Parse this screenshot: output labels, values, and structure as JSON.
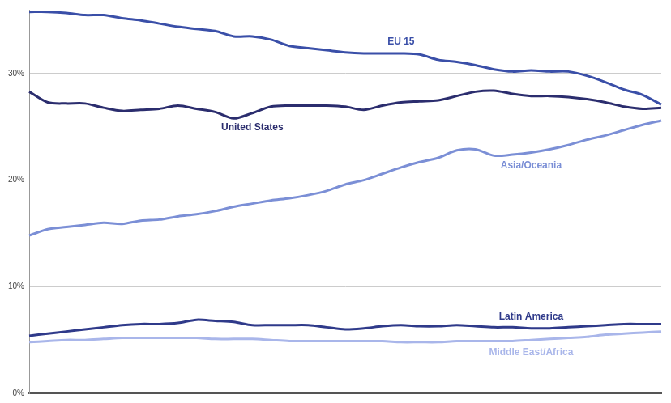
{
  "chart_data": {
    "type": "line",
    "categories": [
      null,
      null,
      null,
      null,
      null,
      null,
      null,
      null,
      null,
      null,
      null,
      null,
      null,
      null,
      null,
      null,
      null,
      null,
      null,
      null,
      null,
      null,
      null,
      null,
      null,
      null,
      null,
      null,
      null,
      null,
      null,
      null,
      null,
      null,
      null
    ],
    "series": [
      {
        "name": "EU 15",
        "color": "#3a4fa8",
        "values": [
          35.8,
          35.8,
          35.7,
          35.5,
          35.5,
          35.2,
          35.0,
          34.7,
          34.4,
          34.2,
          34.0,
          33.5,
          33.5,
          33.2,
          32.6,
          32.4,
          32.2,
          32.0,
          31.9,
          31.9,
          31.9,
          31.8,
          31.3,
          31.1,
          30.8,
          30.4,
          30.2,
          30.3,
          30.2,
          30.2,
          29.8,
          29.2,
          28.5,
          28.0,
          27.1
        ]
      },
      {
        "name": "United States",
        "color": "#2b2d6e",
        "values": [
          28.3,
          27.3,
          27.2,
          27.2,
          26.8,
          26.5,
          26.6,
          26.7,
          27.0,
          26.7,
          26.4,
          25.8,
          26.3,
          26.9,
          27.0,
          27.0,
          27.0,
          26.9,
          26.6,
          27.0,
          27.3,
          27.4,
          27.5,
          27.9,
          28.3,
          28.4,
          28.1,
          27.9,
          27.9,
          27.8,
          27.6,
          27.3,
          26.9,
          26.7,
          26.8
        ]
      },
      {
        "name": "Asia/Oceania",
        "color": "#7b8fd6",
        "values": [
          14.8,
          15.4,
          15.6,
          15.8,
          16.0,
          15.9,
          16.2,
          16.3,
          16.6,
          16.8,
          17.1,
          17.5,
          17.8,
          18.1,
          18.3,
          18.6,
          19.0,
          19.6,
          20.0,
          20.6,
          21.2,
          21.7,
          22.1,
          22.8,
          22.9,
          22.3,
          22.4,
          22.6,
          22.9,
          23.3,
          23.8,
          24.2,
          24.7,
          25.2,
          25.6
        ]
      },
      {
        "name": "Latin America",
        "color": "#2f3a8a",
        "values": [
          5.4,
          5.6,
          5.8,
          6.0,
          6.2,
          6.4,
          6.5,
          6.5,
          6.6,
          6.9,
          6.8,
          6.7,
          6.4,
          6.4,
          6.4,
          6.4,
          6.2,
          6.0,
          6.1,
          6.3,
          6.4,
          6.3,
          6.3,
          6.4,
          6.3,
          6.2,
          6.2,
          6.1,
          6.1,
          6.2,
          6.3,
          6.4,
          6.5,
          6.5,
          6.5
        ]
      },
      {
        "name": "Middle East/Africa",
        "color": "#a9b6ea",
        "values": [
          4.8,
          4.9,
          5.0,
          5.0,
          5.1,
          5.2,
          5.2,
          5.2,
          5.2,
          5.2,
          5.1,
          5.1,
          5.1,
          5.0,
          4.9,
          4.9,
          4.9,
          4.9,
          4.9,
          4.9,
          4.8,
          4.8,
          4.8,
          4.9,
          4.9,
          4.9,
          4.9,
          5.0,
          5.1,
          5.2,
          5.3,
          5.5,
          5.6,
          5.7,
          5.8
        ]
      }
    ],
    "ylim": [
      0,
      36
    ],
    "yticks": [
      {
        "value": 0,
        "label": "0%"
      },
      {
        "value": 10,
        "label": "10%"
      },
      {
        "value": 20,
        "label": "20%"
      },
      {
        "value": 30,
        "label": "30%"
      }
    ],
    "grid": true,
    "tick_labels": "y"
  }
}
